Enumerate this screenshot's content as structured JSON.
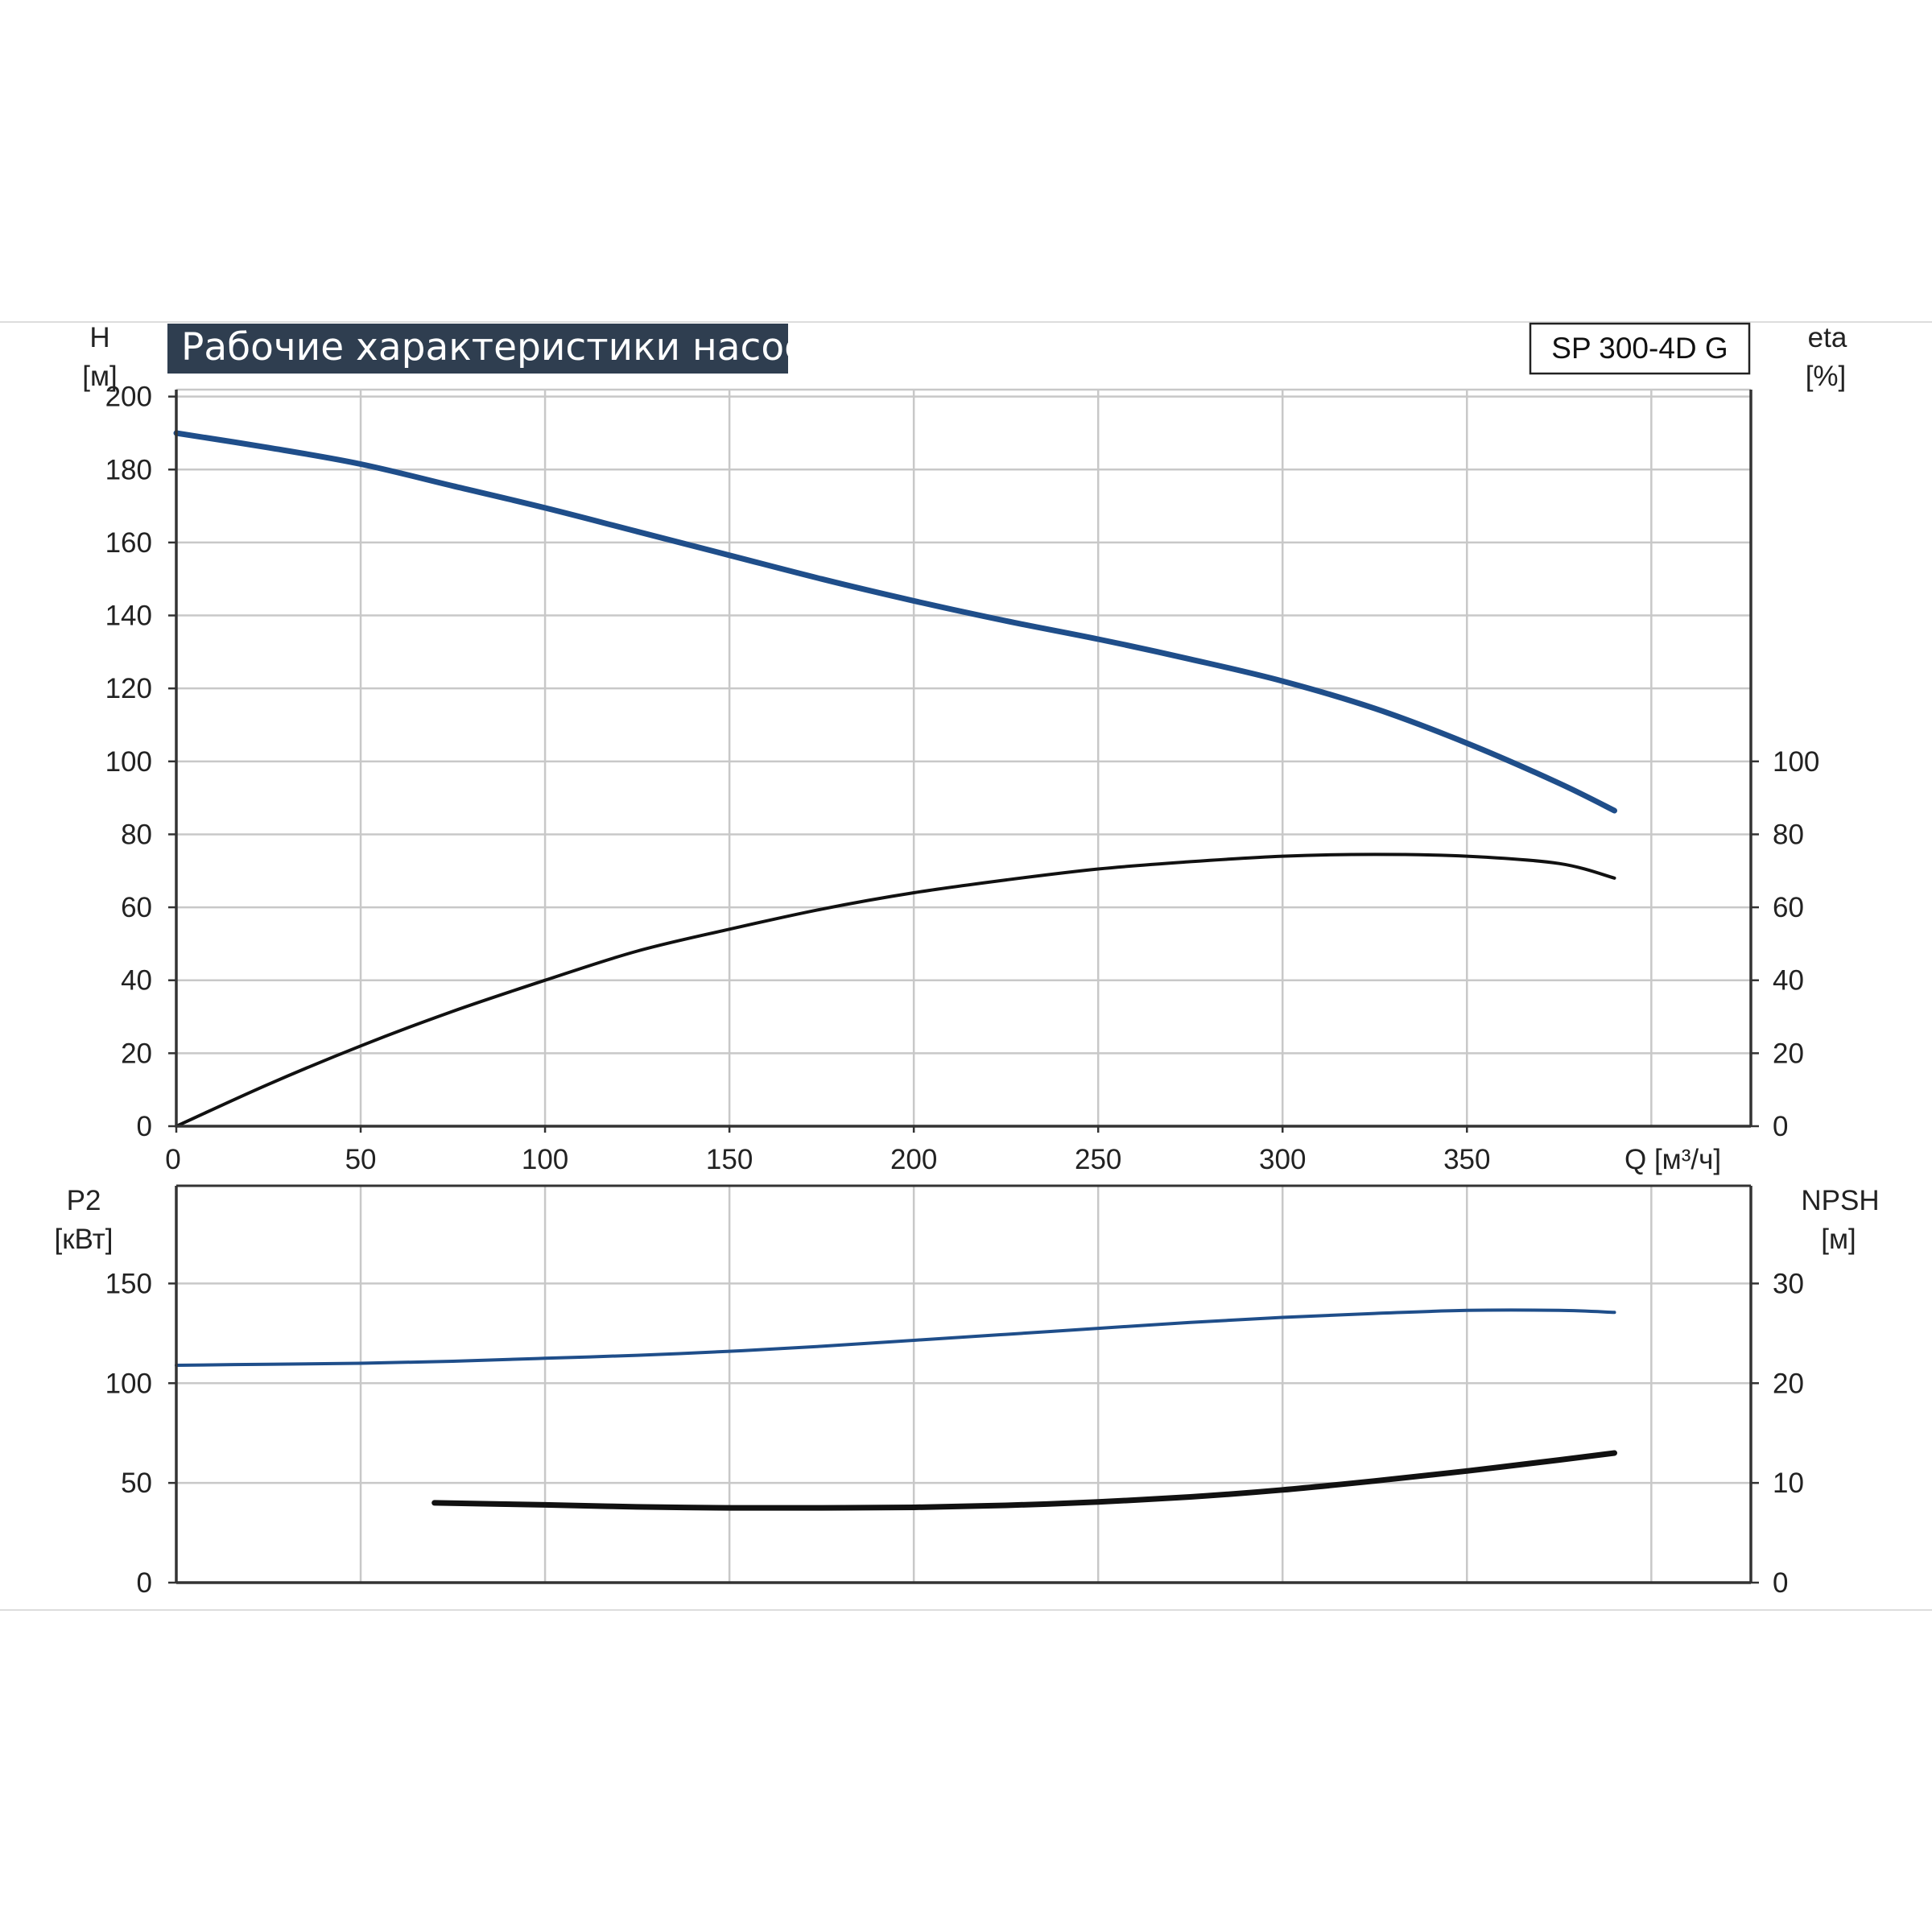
{
  "colors": {
    "blue": "#1f4e8a",
    "black": "#111111",
    "title_bg": "#2f3e50",
    "grid": "#c8c8c8"
  },
  "chart_data": [
    {
      "type": "line",
      "title": "Рабочие характеристики насоса",
      "model_label": "SP 300-4D G",
      "grid": true,
      "x_label": "Q [м³/ч]",
      "x_ticks": [
        "0",
        "50",
        "100",
        "150",
        "200",
        "250",
        "300",
        "350"
      ],
      "xlim": [
        0,
        427
      ],
      "y_left_label": "H",
      "y_left_unit": "[м]",
      "y_left_ticks": [
        "0",
        "20",
        "40",
        "60",
        "80",
        "100",
        "120",
        "140",
        "160",
        "180",
        "200"
      ],
      "ylim_left": [
        0,
        220
      ],
      "y_right_label": "eta",
      "y_right_unit": "[%]",
      "y_right_ticks": [
        "0",
        "20",
        "40",
        "60",
        "80",
        "100"
      ],
      "ylim_right": [
        0,
        220
      ],
      "series": [
        {
          "axis": "left",
          "color": "#1f4e8a",
          "x": [
            0,
            25,
            50,
            75,
            100,
            125,
            150,
            175,
            200,
            225,
            250,
            275,
            300,
            325,
            350,
            375,
            390
          ],
          "y": [
            190,
            186,
            181.5,
            175.5,
            169.5,
            163,
            156.5,
            150,
            144,
            138.5,
            133.5,
            128,
            122,
            114.5,
            105,
            94,
            86.5
          ]
        },
        {
          "axis": "right",
          "color": "#111111",
          "x": [
            0,
            25,
            50,
            75,
            100,
            125,
            150,
            175,
            200,
            225,
            250,
            275,
            300,
            325,
            350,
            375,
            390
          ],
          "y": [
            0,
            11.5,
            22,
            31.5,
            40,
            48,
            54,
            59.5,
            64,
            67.5,
            70.5,
            72.5,
            74,
            74.5,
            74,
            72,
            68
          ]
        }
      ]
    },
    {
      "type": "line",
      "grid": true,
      "x_ticks": [
        "0",
        "50",
        "100",
        "150",
        "200",
        "250",
        "300",
        "350"
      ],
      "xlim": [
        0,
        427
      ],
      "y_left_label": "P2",
      "y_left_unit": "[кВт]",
      "y_left_ticks": [
        "0",
        "50",
        "100",
        "150"
      ],
      "ylim_left": [
        0,
        199
      ],
      "y_right_label": "NPSH",
      "y_right_unit": "[м]",
      "y_right_ticks": [
        "0",
        "10",
        "20",
        "30"
      ],
      "ylim_right": [
        0,
        39.8
      ],
      "series": [
        {
          "axis": "left",
          "color": "#1f4e8a",
          "x": [
            0,
            25,
            50,
            75,
            100,
            125,
            150,
            175,
            200,
            225,
            250,
            275,
            300,
            325,
            350,
            375,
            390
          ],
          "y": [
            109,
            109.5,
            110,
            111,
            112.5,
            114,
            116,
            118.5,
            121.5,
            124.5,
            127.5,
            130.5,
            133,
            135,
            136.5,
            136.5,
            135.5
          ]
        },
        {
          "axis": "right",
          "color": "#111111",
          "x": [
            70,
            100,
            125,
            150,
            175,
            200,
            225,
            250,
            275,
            300,
            325,
            350,
            375,
            390
          ],
          "y": [
            8,
            7.8,
            7.6,
            7.5,
            7.5,
            7.55,
            7.75,
            8.1,
            8.6,
            9.3,
            10.2,
            11.2,
            12.3,
            13
          ]
        }
      ]
    }
  ]
}
